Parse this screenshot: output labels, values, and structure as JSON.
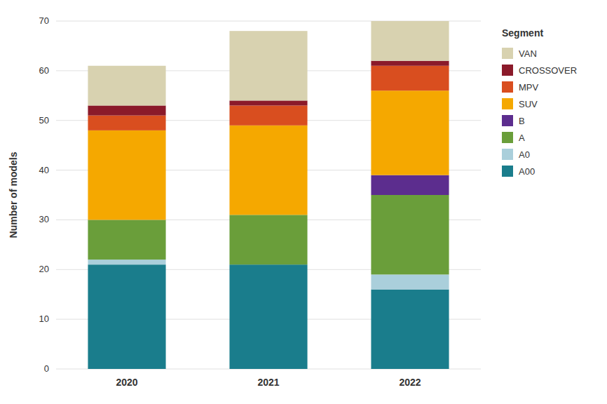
{
  "chart_data": {
    "type": "bar",
    "stacked": true,
    "categories": [
      "2020",
      "2021",
      "2022"
    ],
    "series": [
      {
        "name": "A00",
        "color": "#1a7d8c",
        "values": [
          21,
          21,
          16
        ]
      },
      {
        "name": "A0",
        "color": "#aacfdb",
        "values": [
          1,
          0,
          3
        ]
      },
      {
        "name": "A",
        "color": "#6a9e3a",
        "values": [
          8,
          10,
          16
        ]
      },
      {
        "name": "B",
        "color": "#5c2d8e",
        "values": [
          0,
          0,
          4
        ]
      },
      {
        "name": "SUV",
        "color": "#f5a800",
        "values": [
          18,
          18,
          17
        ]
      },
      {
        "name": "MPV",
        "color": "#d94e1f",
        "values": [
          3,
          4,
          5
        ]
      },
      {
        "name": "CROSSOVER",
        "color": "#8b1a2a",
        "values": [
          2,
          1,
          1
        ]
      },
      {
        "name": "VAN",
        "color": "#d8d2b0",
        "values": [
          8,
          14,
          8
        ]
      }
    ],
    "ylabel": "Number of models",
    "legend_title": "Segment",
    "ylim": [
      0,
      70
    ],
    "yticks": [
      0,
      10,
      20,
      30,
      40,
      50,
      60,
      70
    ],
    "grid": true,
    "legend": "right"
  }
}
